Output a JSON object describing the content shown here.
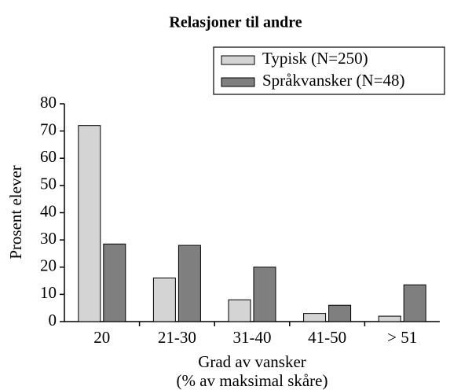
{
  "chart_data": {
    "type": "bar",
    "title": "Relasjoner til andre",
    "categories": [
      "20",
      "21-30",
      "31-40",
      "41-50",
      "> 51"
    ],
    "series": [
      {
        "name": "Typisk (N=250)",
        "color": "#d4d4d4",
        "values": [
          72,
          16,
          8,
          3,
          2
        ]
      },
      {
        "name": "Språkvansker (N=48)",
        "color": "#7f7f7f",
        "values": [
          28.5,
          28,
          20,
          6,
          13.5
        ]
      }
    ],
    "ylabel": "Prosent elever",
    "xlabel": "Grad av vansker",
    "xlabel_sub": "(% av maksimal skåre)",
    "ylim": [
      0,
      80
    ],
    "yticks": [
      0,
      10,
      20,
      30,
      40,
      50,
      60,
      70,
      80
    ],
    "legend": "top-right"
  }
}
